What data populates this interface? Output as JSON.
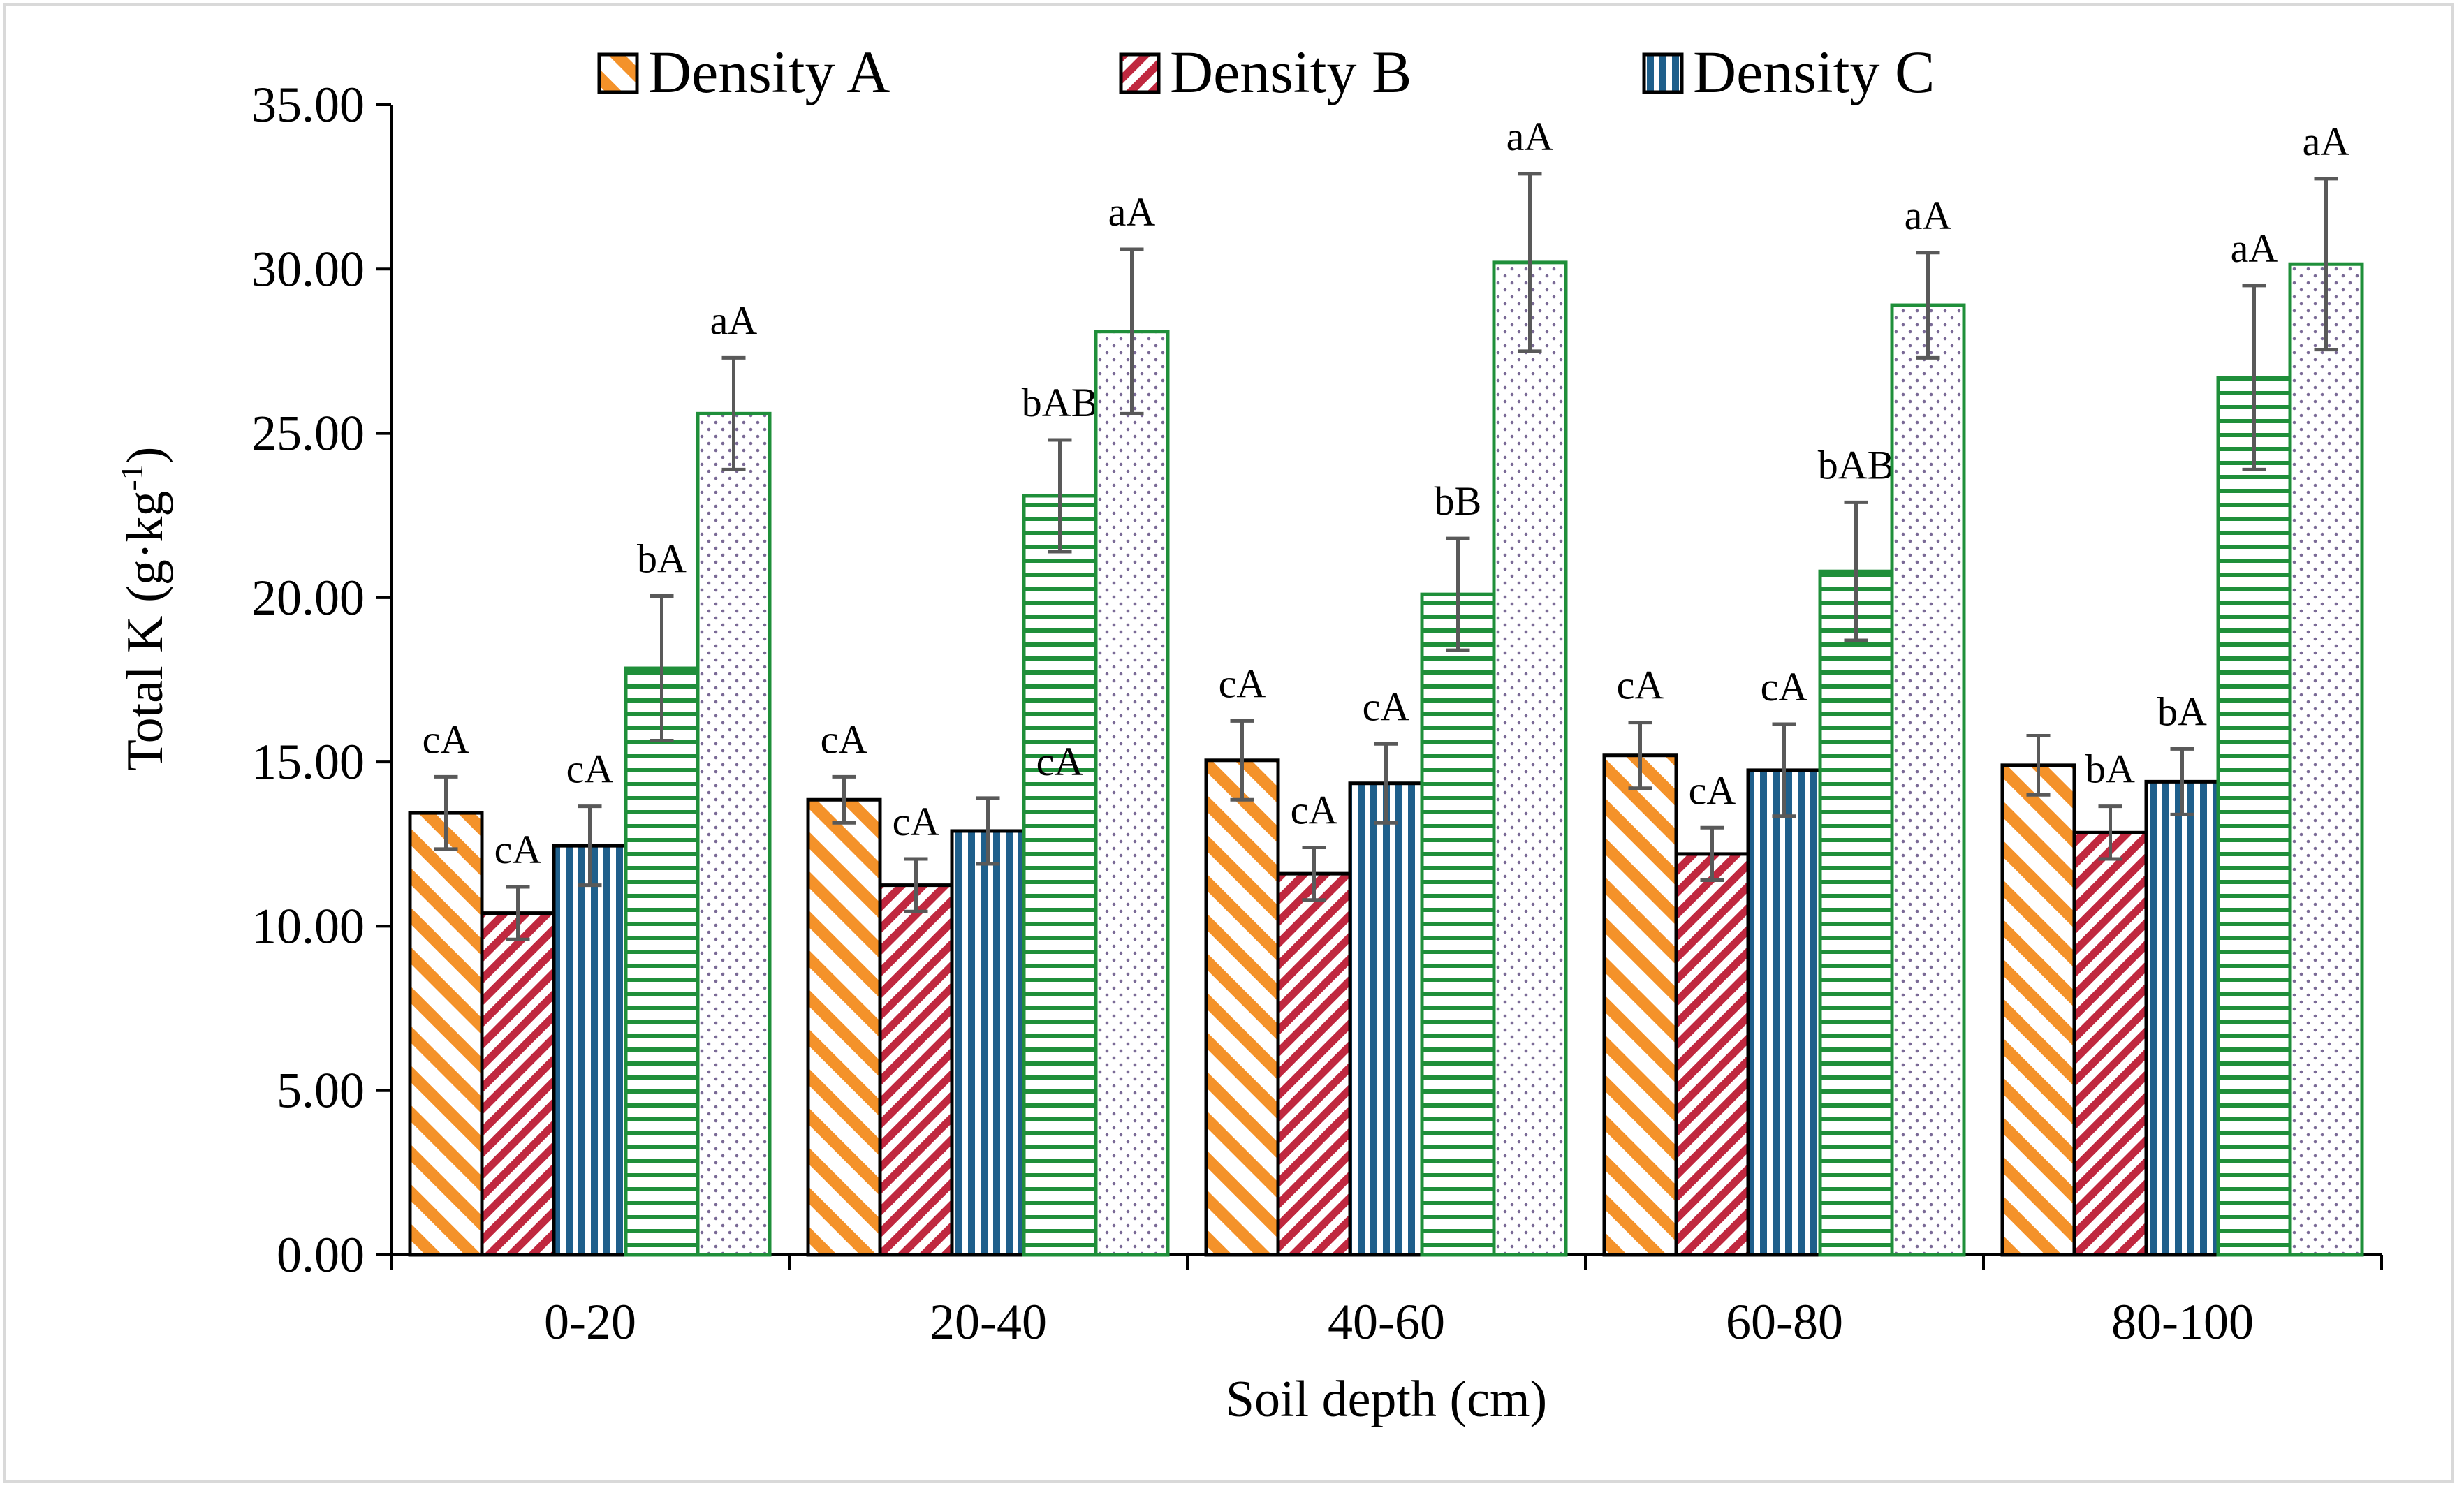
{
  "chart_data": {
    "type": "bar",
    "title": "",
    "xlabel": "Soil depth (cm)",
    "ylabel_main": "Total K (g·kg",
    "ylabel_sup": "-1",
    "ylabel_close": ")",
    "ylim": [
      0,
      35
    ],
    "yticks": [
      "0.00",
      "5.00",
      "10.00",
      "15.00",
      "20.00",
      "25.00",
      "30.00",
      "35.00"
    ],
    "categories": [
      "0-20",
      "20-40",
      "40-60",
      "60-80",
      "80-100"
    ],
    "legend_position": "top",
    "series": [
      {
        "name": "Density A",
        "pattern": "diag-orange",
        "color": "#f4922a",
        "stroke": "#000000",
        "values": [
          13.45,
          13.85,
          15.05,
          15.2,
          14.9
        ],
        "errors": [
          1.1,
          0.7,
          1.2,
          1.0,
          0.9
        ],
        "labels": [
          "cA",
          "cA",
          "cA",
          "cA",
          ""
        ]
      },
      {
        "name": "Density B",
        "pattern": "diag-red",
        "color": "#c0283f",
        "stroke": "#000000",
        "values": [
          10.4,
          11.25,
          11.6,
          12.2,
          12.85
        ],
        "errors": [
          0.8,
          0.8,
          0.8,
          0.8,
          0.8
        ],
        "labels": [
          "cA",
          "cA",
          "cA",
          "cA",
          "bA"
        ]
      },
      {
        "name": "Density C",
        "pattern": "vert-blue",
        "color": "#1f5f8b",
        "stroke": "#000000",
        "values": [
          12.45,
          12.9,
          14.35,
          14.75,
          14.4
        ],
        "errors": [
          1.2,
          1.0,
          1.2,
          1.4,
          1.0
        ],
        "labels": [
          "cA",
          "",
          "cA",
          "cA",
          "bA"
        ]
      },
      {
        "name": "",
        "pattern": "horiz-green",
        "color": "#1f8f3a",
        "stroke": "#1f8f3a",
        "values": [
          17.85,
          23.1,
          20.1,
          20.8,
          26.7
        ],
        "errors": [
          2.2,
          1.7,
          1.7,
          2.1,
          2.8
        ],
        "labels": [
          "bA",
          "bAB",
          "bB",
          "bAB",
          "aA"
        ]
      },
      {
        "name": "",
        "pattern": "dots-purple",
        "color": "#7a6a96",
        "stroke": "#1f8f3a",
        "values": [
          25.6,
          28.1,
          30.2,
          28.9,
          30.15
        ],
        "errors": [
          1.7,
          2.5,
          2.7,
          1.6,
          2.6
        ],
        "labels": [
          "aA",
          "aA",
          "aA",
          "aA",
          "aA"
        ]
      }
    ],
    "extra_annotations": [
      {
        "category": 1,
        "series": 3,
        "text": "cA"
      }
    ]
  }
}
